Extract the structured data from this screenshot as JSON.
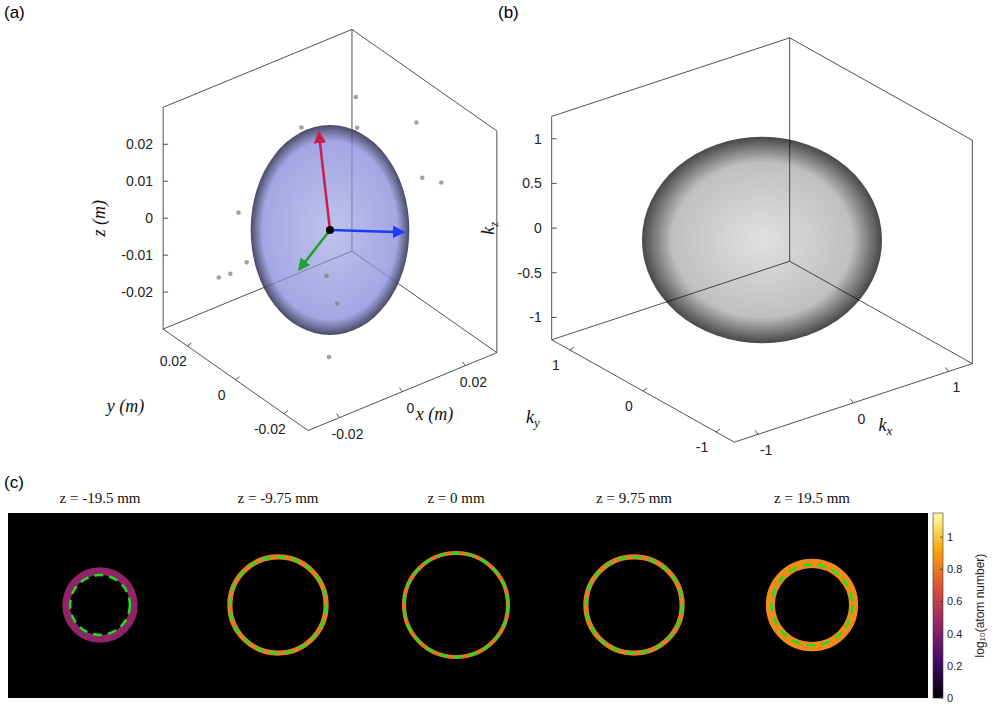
{
  "chart_data": [
    {
      "type": "scatter3d",
      "panel": "(a)",
      "xlabel": "x (m)",
      "ylabel": "y (m)",
      "zlabel": "z (m)",
      "xlim": [
        -0.03,
        0.03
      ],
      "ylim": [
        -0.03,
        0.03
      ],
      "zlim": [
        -0.03,
        0.03
      ],
      "xticks": [
        -0.02,
        0,
        0.02
      ],
      "yticks": [
        -0.02,
        0,
        0.02
      ],
      "zticks": [
        -0.02,
        -0.01,
        0,
        0.01,
        0.02
      ],
      "color": "#7a7a7a",
      "points": {
        "x": [
          -0.026,
          -0.028,
          -0.024,
          0.027,
          0.025,
          0.029,
          0.004,
          -0.006,
          0.01,
          -0.008,
          0.02,
          -0.02,
          0.022,
          -0.018
        ],
        "y": [
          0.004,
          -0.002,
          0.01,
          -0.003,
          0.006,
          0.002,
          -0.006,
          0.004,
          0.01,
          -0.01,
          -0.02,
          0.02,
          0.018,
          -0.022
        ],
        "z": [
          0.012,
          0.002,
          -0.008,
          0.006,
          -0.012,
          0.018,
          0.029,
          0.028,
          -0.028,
          -0.027,
          0.015,
          -0.015,
          0.02,
          0.004
        ]
      },
      "ellipsoid": {
        "center": [
          0,
          0,
          0
        ],
        "semi_axes": [
          0.02,
          0.02,
          0.026
        ],
        "color": "#8c90dc"
      },
      "principal_axes": [
        {
          "vector": [
            -0.002,
            0.002,
            0.026
          ],
          "color": "#c81e50"
        },
        {
          "vector": [
            0.014,
            -0.012,
            0
          ],
          "color": "#1e3cf0"
        },
        {
          "vector": [
            -0.012,
            -0.003,
            -0.005
          ],
          "color": "#1ea032"
        }
      ]
    },
    {
      "type": "scatter3d",
      "panel": "(b)",
      "xlabel": "k",
      "xlabel_sub": "x",
      "ylabel": "k",
      "ylabel_sub": "y",
      "zlabel": "k",
      "zlabel_sub": "z",
      "xlim": [
        -1.25,
        1.25
      ],
      "ylim": [
        -1.25,
        1.25
      ],
      "zlim": [
        -1.25,
        1.25
      ],
      "xticks": [
        -1,
        0,
        1
      ],
      "yticks": [
        -1,
        0,
        1
      ],
      "zticks": [
        -1,
        -0.5,
        0,
        0.5,
        1
      ],
      "sphere": {
        "center": [
          0,
          0,
          0
        ],
        "radius": 1,
        "color": "#000000"
      }
    },
    {
      "type": "image",
      "panel": "(c)",
      "rings": [
        {
          "label": "z = -19.5 mm",
          "z": -19.5,
          "radius": 13,
          "fit_radius": 11.5,
          "thickness": 3,
          "intensity": 0.45
        },
        {
          "label": "z = -9.75 mm",
          "z": -9.75,
          "radius": 18.5,
          "fit_radius": 18.5,
          "thickness": 2,
          "intensity": 0.8
        },
        {
          "label": "z = 0 mm",
          "z": 0,
          "radius": 20,
          "fit_radius": 20,
          "thickness": 1.6,
          "intensity": 0.78
        },
        {
          "label": "z = 9.75 mm",
          "z": 9.75,
          "radius": 18.5,
          "fit_radius": 18.5,
          "thickness": 2,
          "intensity": 0.8
        },
        {
          "label": "z = 19.5 mm",
          "z": 19.5,
          "radius": 16,
          "fit_radius": 15.5,
          "thickness": 3.5,
          "intensity": 0.85
        }
      ],
      "ring_fit_color": "#22dd22",
      "colorbar": {
        "label": "log₁₀(atom number)",
        "range": [
          0,
          1.15
        ],
        "ticks": [
          0,
          0.2,
          0.4,
          0.6,
          0.8,
          1
        ]
      }
    }
  ]
}
